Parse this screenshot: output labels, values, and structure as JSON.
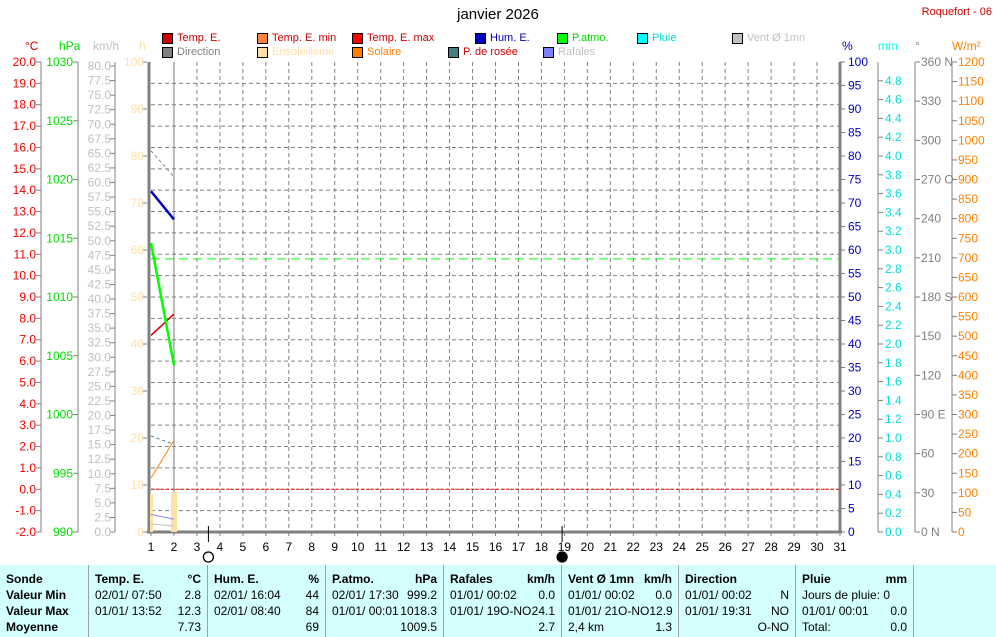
{
  "header": {
    "title": "janvier 2026",
    "station": "Roquefort - 06"
  },
  "legend": [
    {
      "label": "Temp. E.",
      "swatch": "#cc0000",
      "text_color": "#cc0000"
    },
    {
      "label": "Temp. E. min",
      "swatch": "#ff8040",
      "text_color": "#cc0000"
    },
    {
      "label": "Temp. E. max",
      "swatch": "#ff0000",
      "text_color": "#cc0000"
    },
    {
      "label": "Hum. E.",
      "swatch": "#0000c0",
      "text_color": "#0000c0"
    },
    {
      "label": "P.atmo.",
      "swatch": "#00ff00",
      "text_color": "#00dd00"
    },
    {
      "label": "Pluie",
      "swatch": "#00ffff",
      "text_color": "#00dddd"
    },
    {
      "label": "Vent Ø 1mn",
      "swatch": "#c0c0c0",
      "text_color": "#c0c0c0"
    },
    {
      "label": "Direction",
      "swatch": "#808080",
      "text_color": "#808080"
    },
    {
      "label": "Ensoleilleme",
      "swatch": "#ffe0a8",
      "text_color": "#ffe0a8"
    },
    {
      "label": "Solaire",
      "swatch": "#ff8000",
      "text_color": "#ff8000"
    },
    {
      "label": "P. de rosée",
      "swatch": "#408080",
      "text_color": "#cc0000"
    },
    {
      "label": "Rafales",
      "swatch": "#8080ff",
      "text_color": "#c0c0c0"
    }
  ],
  "chart_data": {
    "type": "line",
    "x_label_days": [
      1,
      2,
      3,
      4,
      5,
      6,
      7,
      8,
      9,
      10,
      11,
      12,
      13,
      14,
      15,
      16,
      17,
      18,
      19,
      20,
      21,
      22,
      23,
      24,
      25,
      26,
      27,
      28,
      29,
      30,
      31
    ],
    "xlim": [
      1,
      31
    ],
    "grid": true,
    "axes": {
      "temp": {
        "unit": "°C",
        "range": [
          -2,
          20
        ],
        "ticks": [
          "20.0",
          "19.0",
          "18.0",
          "17.0",
          "16.0",
          "15.0",
          "14.0",
          "13.0",
          "12.0",
          "11.0",
          "10.0",
          "9.0",
          "8.0",
          "7.0",
          "6.0",
          "5.0",
          "4.0",
          "3.0",
          "2.0",
          "1.0",
          "0.0",
          "-1.0",
          "-2.0"
        ],
        "color": "#ff0000"
      },
      "press": {
        "unit": "hPa",
        "range": [
          990,
          1030
        ],
        "ticks": [
          "1030",
          "1025",
          "1020",
          "1015",
          "1010",
          "1005",
          "1000",
          "995",
          "990"
        ],
        "color": "#00ff00"
      },
      "wind": {
        "unit": "km/h",
        "range": [
          0,
          80
        ],
        "ticks": [
          "80.0",
          "77.5",
          "75.0",
          "72.5",
          "70.0",
          "67.5",
          "65.0",
          "62.5",
          "60.0",
          "57.5",
          "55.0",
          "52.5",
          "50.0",
          "47.5",
          "45.0",
          "42.5",
          "40.0",
          "37.5",
          "35.0",
          "32.5",
          "30.0",
          "27.5",
          "25.0",
          "22.5",
          "20.0",
          "17.5",
          "15.0",
          "12.5",
          "10.0",
          "7.5",
          "5.0",
          "2.5",
          "0.0"
        ],
        "color": "#c0c0c0"
      },
      "sun": {
        "unit": "h",
        "range": [
          0,
          100
        ],
        "ticks": [
          "100",
          "90",
          "80",
          "70",
          "60",
          "50",
          "40",
          "30",
          "20",
          "10",
          "0"
        ],
        "color": "#ffe0a8"
      },
      "hum": {
        "unit": "%",
        "range": [
          0,
          100
        ],
        "ticks": [
          "100",
          "95",
          "90",
          "85",
          "80",
          "75",
          "70",
          "65",
          "60",
          "55",
          "50",
          "45",
          "40",
          "35",
          "30",
          "25",
          "20",
          "15",
          "10",
          "5",
          "0"
        ],
        "color": "#0000c0"
      },
      "rain": {
        "unit": "mm",
        "range": [
          0,
          5
        ],
        "ticks": [
          "4.8",
          "4.6",
          "4.4",
          "4.2",
          "4.0",
          "3.8",
          "3.6",
          "3.4",
          "3.2",
          "3.0",
          "2.8",
          "2.6",
          "2.4",
          "2.2",
          "2.0",
          "1.8",
          "1.6",
          "1.4",
          "1.2",
          "1.0",
          "0.8",
          "0.6",
          "0.4",
          "0.2",
          "0.0"
        ],
        "color": "#00ffff"
      },
      "dir": {
        "unit": "°",
        "range": [
          0,
          360
        ],
        "ticks": [
          "360 N",
          "330",
          "300",
          "270 O",
          "240",
          "210",
          "180 S",
          "150",
          "120",
          "90  E",
          "60",
          "30",
          "0   N"
        ],
        "color": "#808080"
      },
      "solar": {
        "unit": "W/m²",
        "range": [
          0,
          1200
        ],
        "ticks": [
          "1200",
          "1150",
          "1100",
          "1050",
          "1000",
          "950",
          "900",
          "850",
          "800",
          "750",
          "700",
          "650",
          "600",
          "550",
          "500",
          "450",
          "400",
          "350",
          "300",
          "250",
          "200",
          "150",
          "100",
          "50",
          "0"
        ],
        "color": "#ff8000"
      }
    },
    "series": [
      {
        "name": "Temp. E.",
        "axis": "temp",
        "color": "#cc0000",
        "x": [
          1,
          2
        ],
        "values": [
          7.2,
          8.2
        ]
      },
      {
        "name": "Hum. E.",
        "axis": "hum",
        "color": "#0000c0",
        "x": [
          1,
          2
        ],
        "values": [
          72.5,
          66.5
        ]
      },
      {
        "name": "P.atmo.",
        "axis": "press",
        "color": "#00ff00",
        "x": [
          1,
          2
        ],
        "values": [
          1014.6,
          1004.2
        ]
      },
      {
        "name": "Solaire",
        "axis": "solar",
        "color": "#ff8000",
        "x": [
          1,
          2
        ],
        "values": [
          138,
          234
        ]
      },
      {
        "name": "P. de rosée",
        "axis": "temp",
        "color": "#408080",
        "dashed": true,
        "x": [
          1,
          2
        ],
        "values": [
          2.5,
          2.1
        ]
      },
      {
        "name": "Direction",
        "axis": "dir",
        "color": "#808080",
        "dashed": true,
        "x": [
          1,
          2
        ],
        "values": [
          292,
          272
        ]
      },
      {
        "name": "Rafales",
        "axis": "wind",
        "color": "#8080ff",
        "x": [
          1,
          2
        ],
        "values": [
          3.0,
          2.2
        ]
      },
      {
        "name": "Vent Ø 1mn",
        "axis": "wind",
        "color": "#c0c0c0",
        "x": [
          1,
          2
        ],
        "values": [
          1.4,
          1.0
        ]
      }
    ],
    "bars": {
      "name": "Ensoleilleme",
      "axis": "sun",
      "color": "#ffe0a8",
      "x": [
        1,
        2
      ],
      "values": [
        8,
        8.5
      ]
    },
    "reference_lines": [
      {
        "axis": "press",
        "value": 1013.25,
        "color": "#00ff00"
      },
      {
        "axis": "temp",
        "value": 0,
        "color": "#ff0000"
      }
    ],
    "current_day": 2,
    "moon_phases": [
      {
        "day": 3.5,
        "phase": "full"
      },
      {
        "day": 18.9,
        "phase": "new"
      }
    ]
  },
  "table": {
    "sonde": {
      "title": "Sonde",
      "rows": [
        "Valeur Min",
        "Valeur Max",
        "Moyenne"
      ]
    },
    "columns": [
      {
        "title": "Temp. E.",
        "unit": "°C",
        "rows": [
          [
            "02/01/  07:50",
            "2.8"
          ],
          [
            "01/01/  13:52",
            "12.3"
          ],
          [
            "",
            "7.73"
          ]
        ]
      },
      {
        "title": "Hum. E.",
        "unit": "%",
        "rows": [
          [
            "02/01/  16:04",
            "44"
          ],
          [
            "02/01/  08:40",
            "84"
          ],
          [
            "",
            "69"
          ]
        ]
      },
      {
        "title": "P.atmo.",
        "unit": "hPa",
        "rows": [
          [
            "02/01/  17:30",
            "999.2"
          ],
          [
            "01/01/  00:01",
            "1018.3"
          ],
          [
            "",
            "1009.5"
          ]
        ]
      },
      {
        "title": "Rafales",
        "unit": "km/h",
        "rows": [
          [
            "01/01/  00:02",
            "0.0"
          ],
          [
            "01/01/  19O-NO",
            "24.1"
          ],
          [
            "",
            "2.7"
          ]
        ]
      },
      {
        "title": "Vent Ø 1mn",
        "unit": "km/h",
        "rows": [
          [
            "01/01/  00:02",
            "0.0"
          ],
          [
            "01/01/  21O-NO",
            "12.9"
          ],
          [
            "2,4 km",
            "1.3"
          ]
        ]
      },
      {
        "title": "Direction",
        "unit": "",
        "rows": [
          [
            "01/01/  00:02",
            "N"
          ],
          [
            "01/01/  19:31",
            "NO"
          ],
          [
            "",
            "O-NO"
          ]
        ]
      },
      {
        "title": "Pluie",
        "unit": "mm",
        "rows": [
          [
            "Jours de pluie: 0",
            ""
          ],
          [
            "01/01/  00:01",
            "0.0"
          ],
          [
            "Total:",
            "0.0"
          ]
        ]
      }
    ]
  }
}
